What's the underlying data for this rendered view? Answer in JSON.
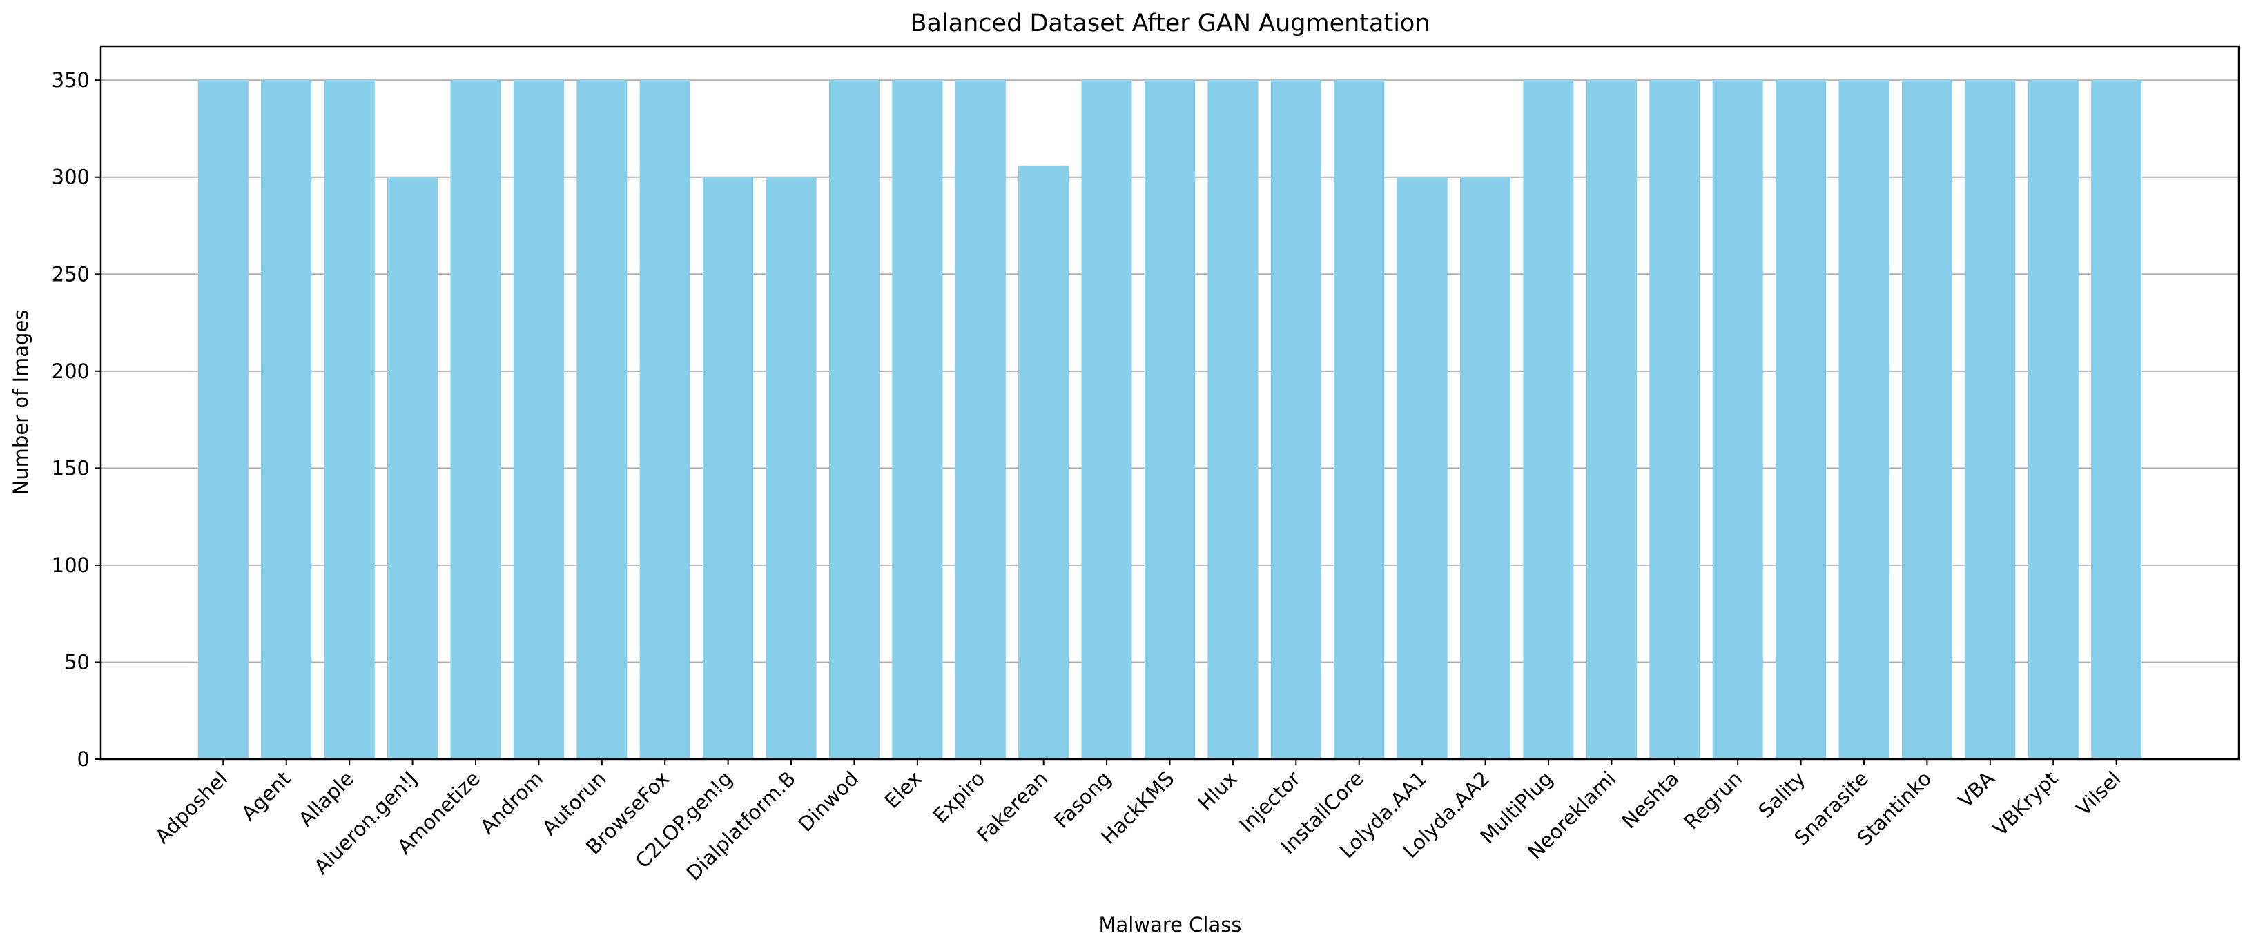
{
  "chart_data": {
    "type": "bar",
    "title": "Balanced Dataset After GAN Augmentation",
    "xlabel": "Malware Class",
    "ylabel": "Number of Images",
    "categories": [
      "Adposhel",
      "Agent",
      "Allaple",
      "Alueron.gen!J",
      "Amonetize",
      "Androm",
      "Autorun",
      "BrowseFox",
      "C2LOP.gen!g",
      "Dialplatform.B",
      "Dinwod",
      "Elex",
      "Expiro",
      "Fakerean",
      "Fasong",
      "HackKMS",
      "Hlux",
      "Injector",
      "InstallCore",
      "Lolyda.AA1",
      "Lolyda.AA2",
      "MultiPlug",
      "Neoreklami",
      "Neshta",
      "Regrun",
      "Sality",
      "Snarasite",
      "Stantinko",
      "VBA",
      "VBKrypt",
      "Vilsel"
    ],
    "values": [
      350,
      350,
      350,
      300,
      350,
      350,
      350,
      350,
      300,
      300,
      350,
      350,
      350,
      306,
      350,
      350,
      350,
      350,
      350,
      300,
      300,
      350,
      350,
      350,
      350,
      350,
      350,
      350,
      350,
      350,
      350
    ],
    "ylim": [
      0,
      367.5
    ],
    "yticks": [
      0,
      50,
      100,
      150,
      200,
      250,
      300,
      350
    ],
    "grid": "y-axis only",
    "bar_color": "#87CEEB",
    "legend": "none"
  }
}
